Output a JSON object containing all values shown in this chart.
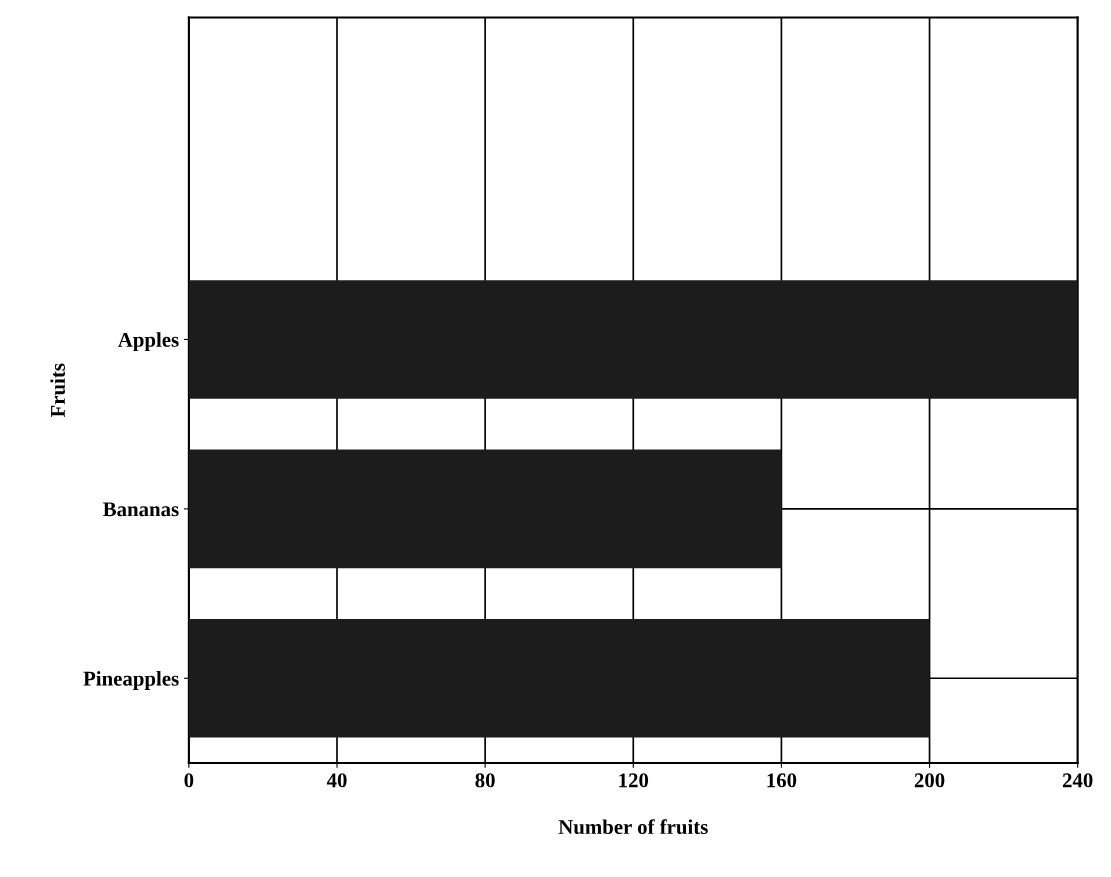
{
  "chart_data": {
    "type": "bar",
    "orientation": "horizontal",
    "xlabel": "Number of fruits",
    "ylabel": "Fruits",
    "categories": [
      "Apples",
      "Bananas",
      "Pineapples"
    ],
    "values": [
      240,
      160,
      200
    ],
    "color": "#1c1c1c",
    "xlim": [
      0,
      240
    ],
    "xticks": [
      0,
      40,
      80,
      120,
      160,
      200,
      240
    ],
    "grid": true
  }
}
